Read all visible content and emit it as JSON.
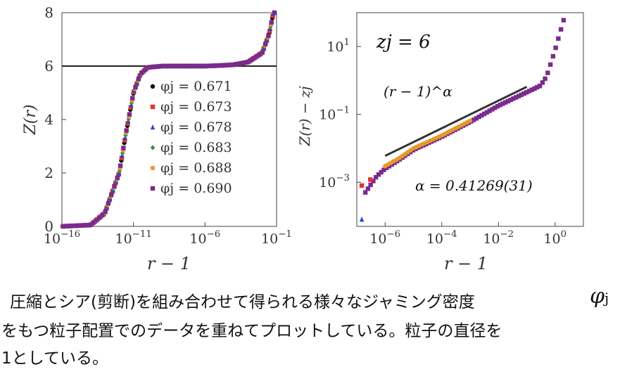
{
  "chart_data": [
    {
      "type": "scatter",
      "x_scale": "log",
      "xlim": [
        1e-16,
        0.1
      ],
      "ylim": [
        0,
        8
      ],
      "xticks": [
        "10^-16",
        "10^-11",
        "10^-6",
        "10^-1"
      ],
      "yticks": [
        "0",
        "2",
        "4",
        "6",
        "8"
      ],
      "xlabel": "r − 1",
      "ylabel": "Z(r)",
      "reference_line": {
        "y": 6
      },
      "legend_position": "center-right",
      "series": [
        {
          "name": "φj = 0.671",
          "color": "#111111",
          "marker": "circle",
          "x": [
            1e-16,
            1e-14,
            1e-13,
            1e-12,
            3e-12,
            1e-11,
            3e-11,
            1e-10,
            1e-09,
            1e-08,
            1e-07,
            1e-06,
            1e-05,
            0.0001,
            0.001,
            0.01,
            0.03,
            0.06
          ],
          "y": [
            0.0,
            0.05,
            0.5,
            2.0,
            3.5,
            5.0,
            5.7,
            5.95,
            6.0,
            6.0,
            6.0,
            6.0,
            6.02,
            6.05,
            6.15,
            6.5,
            7.2,
            8.0
          ]
        },
        {
          "name": "φj = 0.673",
          "color": "#e0342b",
          "marker": "square",
          "x": [
            1e-16,
            1e-14,
            1e-13,
            1e-12,
            3e-12,
            1e-11,
            3e-11,
            1e-10,
            1e-09,
            1e-08,
            1e-07,
            1e-06,
            1e-05,
            0.0001,
            0.001,
            0.01,
            0.03,
            0.06
          ],
          "y": [
            0.0,
            0.05,
            0.5,
            2.0,
            3.5,
            5.0,
            5.7,
            5.95,
            6.0,
            6.0,
            6.0,
            6.0,
            6.02,
            6.05,
            6.15,
            6.5,
            7.2,
            8.0
          ]
        },
        {
          "name": "φj = 0.678",
          "color": "#2446d8",
          "marker": "triangle",
          "x": [
            1e-16,
            1e-14,
            1e-13,
            1e-12,
            3e-12,
            1e-11,
            3e-11,
            1e-10,
            1e-09,
            1e-08,
            1e-07,
            1e-06,
            1e-05,
            0.0001,
            0.001,
            0.01,
            0.03,
            0.06
          ],
          "y": [
            0.0,
            0.05,
            0.5,
            2.0,
            3.5,
            5.0,
            5.7,
            5.95,
            6.0,
            6.0,
            6.0,
            6.0,
            6.02,
            6.05,
            6.15,
            6.5,
            7.2,
            8.0
          ]
        },
        {
          "name": "φj = 0.683",
          "color": "#3a8a4a",
          "marker": "diamond",
          "x": [
            1e-16,
            1e-14,
            1e-13,
            1e-12,
            3e-12,
            1e-11,
            3e-11,
            1e-10,
            1e-09,
            1e-08,
            1e-07,
            1e-06,
            1e-05,
            0.0001,
            0.001,
            0.01,
            0.03,
            0.06
          ],
          "y": [
            0.0,
            0.05,
            0.5,
            2.0,
            3.5,
            5.0,
            5.7,
            5.95,
            6.0,
            6.0,
            6.0,
            6.0,
            6.02,
            6.05,
            6.15,
            6.5,
            7.2,
            8.0
          ]
        },
        {
          "name": "φj = 0.688",
          "color": "#e39a2a",
          "marker": "circle",
          "x": [
            1e-16,
            1e-14,
            1e-13,
            1e-12,
            3e-12,
            1e-11,
            3e-11,
            1e-10,
            1e-09,
            1e-08,
            1e-07,
            1e-06,
            1e-05,
            0.0001,
            0.001,
            0.01,
            0.03,
            0.06
          ],
          "y": [
            0.0,
            0.05,
            0.5,
            2.0,
            3.5,
            5.0,
            5.7,
            5.95,
            6.0,
            6.0,
            6.0,
            6.0,
            6.02,
            6.05,
            6.15,
            6.5,
            7.2,
            8.0
          ]
        },
        {
          "name": "φj = 0.690",
          "color": "#7b2a8e",
          "marker": "square",
          "x": [
            1e-16,
            1e-14,
            1e-13,
            1e-12,
            3e-12,
            1e-11,
            3e-11,
            1e-10,
            1e-09,
            1e-08,
            1e-07,
            1e-06,
            1e-05,
            0.0001,
            0.001,
            0.01,
            0.03,
            0.06
          ],
          "y": [
            0.0,
            0.05,
            0.5,
            2.0,
            3.5,
            5.0,
            5.7,
            5.95,
            6.0,
            6.0,
            6.0,
            6.0,
            6.02,
            6.05,
            6.15,
            6.5,
            7.2,
            8.0
          ]
        }
      ]
    },
    {
      "type": "scatter",
      "x_scale": "log",
      "y_scale": "log",
      "xlim": [
        1e-07,
        10
      ],
      "ylim": [
        5e-05,
        100
      ],
      "xticks": [
        "10^-6",
        "10^-4",
        "10^-2",
        "10^0"
      ],
      "yticks": [
        "10^-3",
        "10^-1",
        "10^1"
      ],
      "xlabel": "r − 1",
      "ylabel": "Z(r) − zj",
      "annotations": [
        "zj = 6",
        "(r − 1)^α",
        "α = 0.41269(31)"
      ],
      "fit_line": {
        "x": [
          1e-06,
          0.1
        ],
        "y": [
          0.006,
          0.65
        ]
      },
      "series": [
        {
          "name": "φj = 0.690",
          "color": "#7b2a8e",
          "marker": "square",
          "x": [
            2e-07,
            5e-07,
            1e-06,
            3e-06,
            1e-05,
            0.0001,
            0.001,
            0.01,
            0.1,
            0.3,
            0.5,
            1,
            2
          ],
          "y": [
            0.0005,
            0.0015,
            0.0025,
            0.0045,
            0.009,
            0.022,
            0.06,
            0.18,
            0.45,
            0.7,
            1.3,
            8,
            60
          ]
        },
        {
          "name": "φj = 0.688",
          "color": "#e39a2a",
          "marker": "circle",
          "x": [
            1e-06,
            3e-06,
            1e-05,
            0.0001,
            0.001
          ],
          "y": [
            0.003,
            0.005,
            0.01,
            0.024,
            0.065
          ]
        },
        {
          "name": "φj = 0.673",
          "color": "#e0342b",
          "marker": "square",
          "x": [
            1.5e-07,
            3e-07
          ],
          "y": [
            0.0008,
            0.0012
          ]
        },
        {
          "name": "φj = 0.678",
          "color": "#2446d8",
          "marker": "triangle",
          "x": [
            1.5e-07
          ],
          "y": [
            8e-05
          ]
        }
      ]
    }
  ],
  "caption": {
    "line1": "圧縮とシア(剪断)を組み合わせて得られる様々なジャミング密度",
    "symbol": "φ",
    "symbol_sub": "j",
    "line2": "をもつ粒子配置でのデータを重ねてプロットしている。粒子の直径を",
    "line3": "1としている。"
  }
}
